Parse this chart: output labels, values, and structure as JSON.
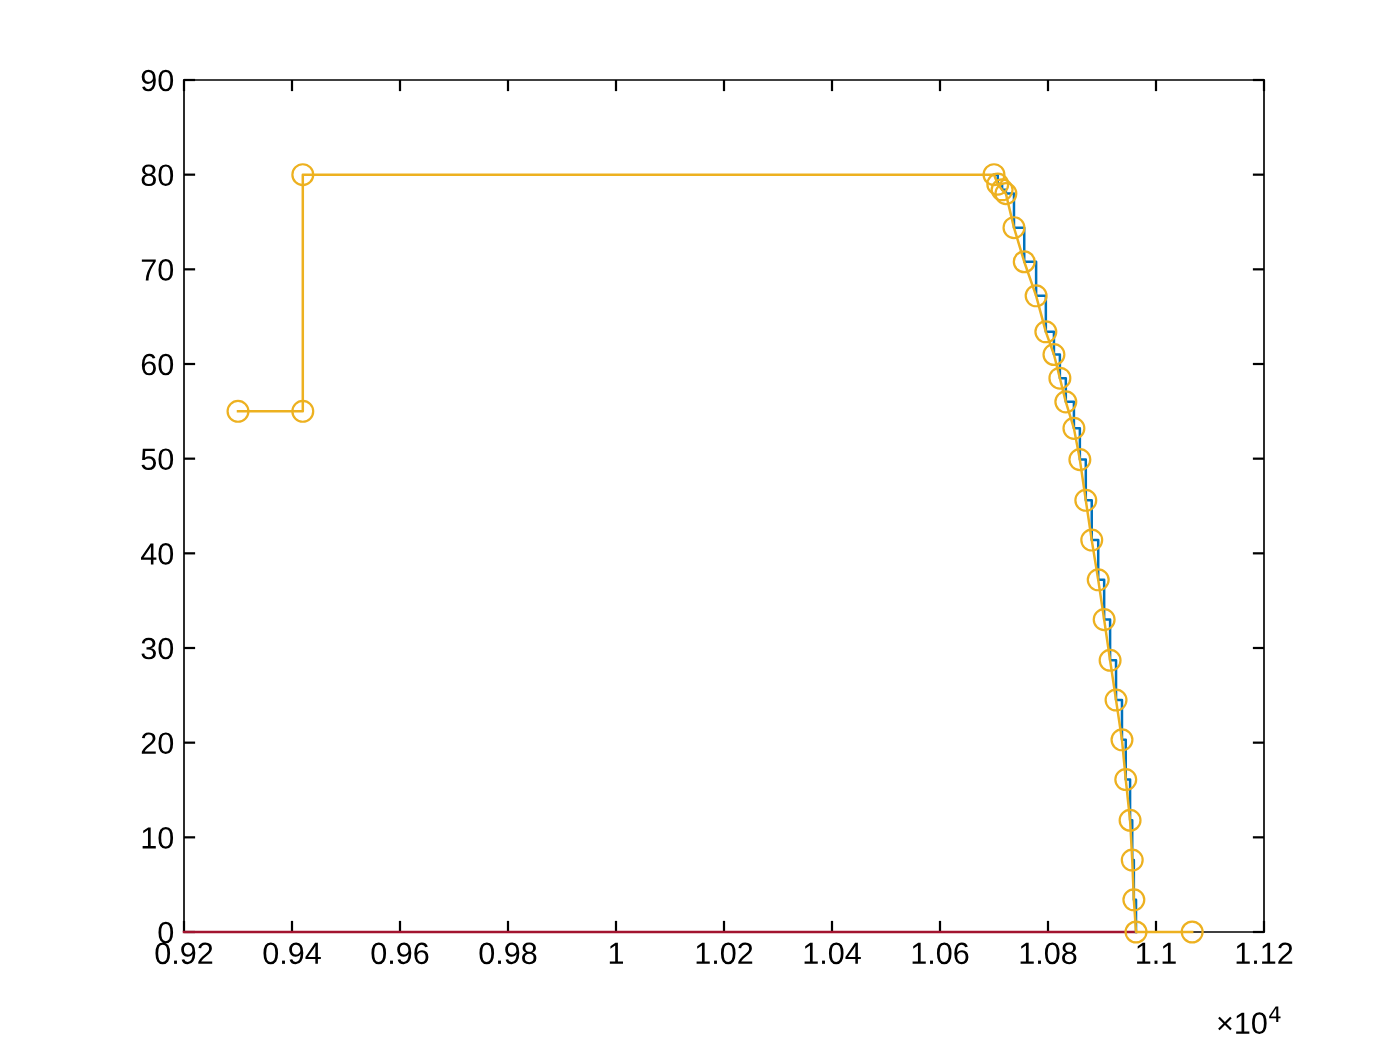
{
  "chart_data": {
    "type": "line",
    "xlim": [
      0.92,
      1.12
    ],
    "ylim": [
      0,
      90
    ],
    "xticks": [
      0.92,
      0.94,
      0.96,
      0.98,
      1,
      1.02,
      1.04,
      1.06,
      1.08,
      1.1,
      1.12
    ],
    "yticks": [
      0,
      10,
      20,
      30,
      40,
      50,
      60,
      70,
      80,
      90
    ],
    "annotations": [
      "×10$^{4}$"
    ],
    "grid": false,
    "legend": false,
    "series": [
      {
        "color": "#a2142f",
        "marker": "none",
        "x": [
          0.92,
          1.0963
        ],
        "values": [
          0,
          0
        ]
      },
      {
        "type": "step",
        "color": "#0072bd",
        "marker": "none",
        "x": [
          1.07,
          1.0707,
          1.0715,
          1.0722,
          1.0737,
          1.0756,
          1.0778,
          1.0796,
          1.0811,
          1.0822,
          1.0833,
          1.0848,
          1.0859,
          1.087,
          1.0881,
          1.0893,
          1.0904,
          1.0915,
          1.0926,
          1.0937,
          1.0944,
          1.0952,
          1.0956,
          1.0959,
          1.0963
        ],
        "values": [
          80,
          79,
          78.4,
          78,
          74.4,
          70.8,
          67.2,
          63.4,
          61,
          58.5,
          56,
          53.2,
          49.9,
          45.6,
          41.4,
          37.2,
          33,
          28.7,
          24.5,
          20.3,
          16.1,
          11.8,
          7.6,
          3.4,
          0
        ]
      },
      {
        "color": "#edb120",
        "marker": "circle",
        "x": [
          0.93,
          0.942,
          0.942,
          1.07,
          1.0707,
          1.0715,
          1.0722,
          1.0737,
          1.0756,
          1.0778,
          1.0796,
          1.0811,
          1.0822,
          1.0833,
          1.0848,
          1.0859,
          1.087,
          1.0881,
          1.0893,
          1.0904,
          1.0915,
          1.0926,
          1.0937,
          1.0944,
          1.0952,
          1.0956,
          1.0959,
          1.0963,
          1.1067
        ],
        "values": [
          55,
          55,
          80,
          80,
          79,
          78.4,
          78,
          74.4,
          70.8,
          67.2,
          63.4,
          61,
          58.5,
          56,
          53.2,
          49.9,
          45.6,
          41.4,
          37.2,
          33,
          28.7,
          24.5,
          20.3,
          16.1,
          11.8,
          7.6,
          3.4,
          0,
          0
        ]
      }
    ]
  }
}
